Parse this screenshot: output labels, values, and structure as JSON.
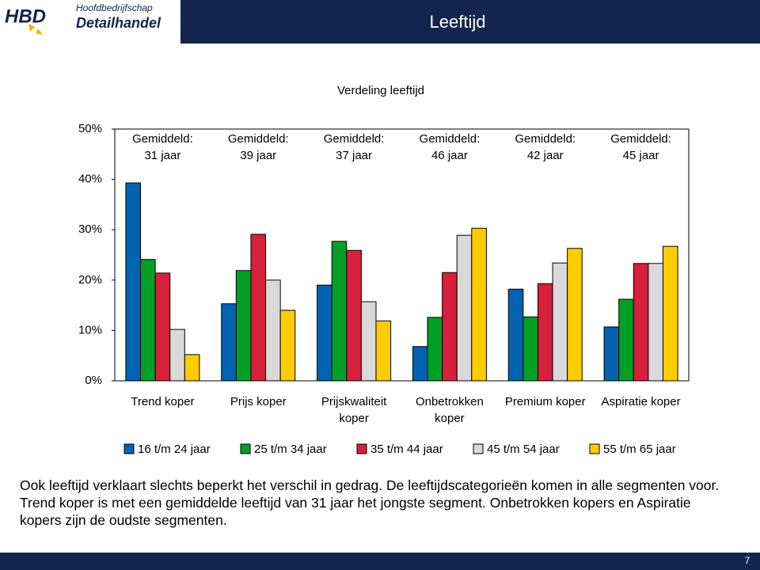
{
  "header": {
    "logo_abbr": "HBD",
    "logo_line1": "Hoofdbedrijfschap",
    "logo_line2": "Detailhandel",
    "title": "Leeftijd"
  },
  "chart_data": {
    "type": "bar",
    "title": "Verdeling leeftijd",
    "categories": [
      "Trend koper",
      "Prijs koper",
      "Prijskwaliteit koper",
      "Onbetrokken koper",
      "Premium koper",
      "Aspiratie koper"
    ],
    "annotations": [
      "Gemiddeld:\n31 jaar",
      "Gemiddeld:\n39 jaar",
      "Gemiddeld:\n37 jaar",
      "Gemiddeld:\n46 jaar",
      "Gemiddeld:\n42 jaar",
      "Gemiddeld:\n45 jaar"
    ],
    "series": [
      {
        "name": "16 t/m 24 jaar",
        "color": "#0063b1",
        "values": [
          39.3,
          15.3,
          19.0,
          6.8,
          18.2,
          10.7
        ]
      },
      {
        "name": "25 t/m 34 jaar",
        "color": "#00a026",
        "values": [
          24.1,
          21.9,
          27.7,
          12.6,
          12.7,
          16.2
        ]
      },
      {
        "name": "35 t/m 44 jaar",
        "color": "#d6203c",
        "values": [
          21.4,
          29.1,
          25.9,
          21.5,
          19.3,
          23.3
        ]
      },
      {
        "name": "45 t/m 54 jaar",
        "color": "#d9d9d9",
        "values": [
          10.2,
          20.0,
          15.7,
          28.9,
          23.4,
          23.3
        ]
      },
      {
        "name": "55 t/m 65 jaar",
        "color": "#ffcc00",
        "values": [
          5.2,
          14.0,
          11.9,
          30.3,
          26.3,
          26.7
        ]
      }
    ],
    "ylim": [
      0,
      50
    ],
    "yticks": [
      {
        "value": 0,
        "label": "0%"
      },
      {
        "value": 10,
        "label": "10%"
      },
      {
        "value": 20,
        "label": "20%"
      },
      {
        "value": 30,
        "label": "30%"
      },
      {
        "value": 40,
        "label": "40%"
      },
      {
        "value": 50,
        "label": "50%"
      }
    ],
    "grid": false,
    "legend": "bottom"
  },
  "body_text": "Ook leeftijd verklaart slechts beperkt het verschil in gedrag. De leeftijdscategorieën komen in alle segmenten voor. Trend koper is met een gemiddelde leeftijd van 31 jaar het jongste segment. Onbetrokken kopers en Aspiratie kopers zijn de oudste segmenten.",
  "footer": {
    "page_number": "7"
  }
}
